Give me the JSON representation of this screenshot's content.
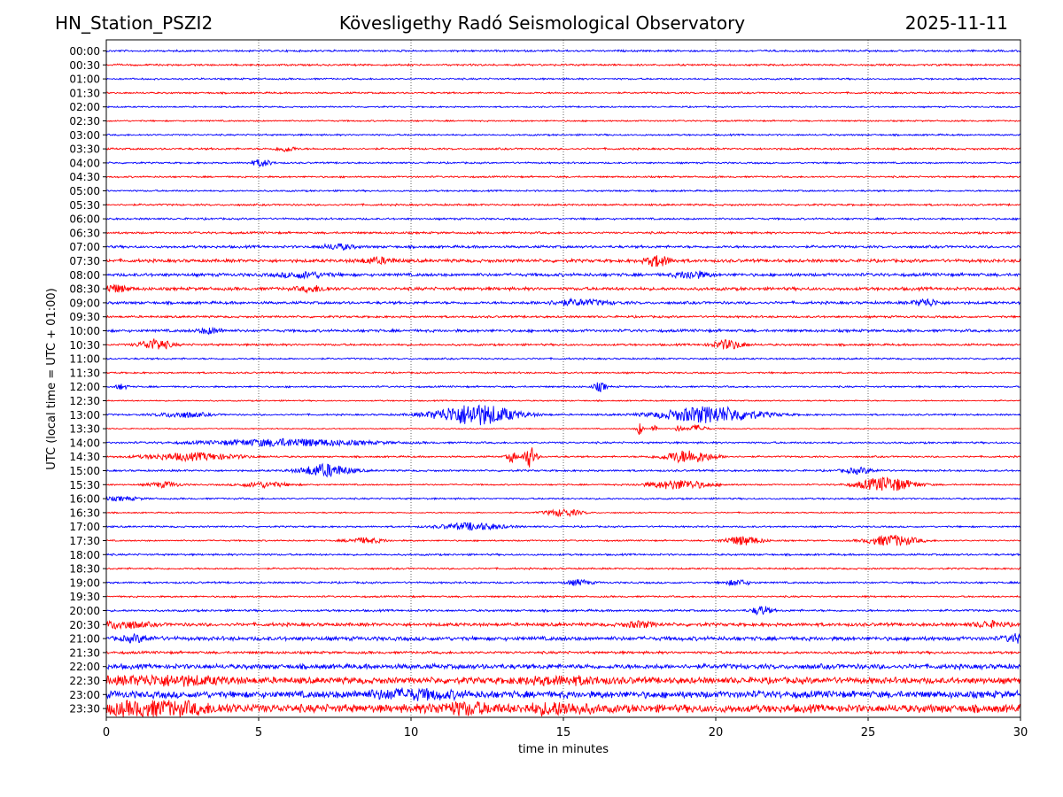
{
  "header": {
    "station": "HN_Station_PSZI2",
    "observatory": "Kövesligethy Radó Seismological Observatory",
    "date": "2025-11-11"
  },
  "chart_data": {
    "type": "line",
    "title": "Kövesligethy Radó Seismological Observatory",
    "xlabel": "time in minutes",
    "ylabel": "UTC (local time = UTC + 01:00)",
    "xlim": [
      0,
      30
    ],
    "xticks": [
      "0",
      "5",
      "10",
      "15",
      "20",
      "25",
      "30"
    ],
    "grid": "vertical dotted lines at 5, 10, 15, 20, 25",
    "trace_colors": [
      "#0000ff",
      "#ff0000"
    ],
    "rows": [
      {
        "label": "00:00",
        "noise": 0.9,
        "events": []
      },
      {
        "label": "00:30",
        "noise": 0.9,
        "events": []
      },
      {
        "label": "01:00",
        "noise": 0.8,
        "events": []
      },
      {
        "label": "01:30",
        "noise": 0.8,
        "events": []
      },
      {
        "label": "02:00",
        "noise": 0.7,
        "events": []
      },
      {
        "label": "02:30",
        "noise": 0.7,
        "events": []
      },
      {
        "label": "03:00",
        "noise": 0.8,
        "events": []
      },
      {
        "label": "03:30",
        "noise": 0.9,
        "events": [
          [
            5.9,
            3,
            0.3
          ]
        ]
      },
      {
        "label": "04:00",
        "noise": 0.8,
        "events": [
          [
            5.1,
            4,
            0.3
          ]
        ]
      },
      {
        "label": "04:30",
        "noise": 0.8,
        "events": []
      },
      {
        "label": "05:00",
        "noise": 0.8,
        "events": []
      },
      {
        "label": "05:30",
        "noise": 0.9,
        "events": []
      },
      {
        "label": "06:00",
        "noise": 0.9,
        "events": []
      },
      {
        "label": "06:30",
        "noise": 1.0,
        "events": []
      },
      {
        "label": "07:00",
        "noise": 1.2,
        "events": [
          [
            7.6,
            3,
            0.5
          ]
        ]
      },
      {
        "label": "07:30",
        "noise": 1.5,
        "events": [
          [
            18.1,
            6,
            0.4
          ],
          [
            8.9,
            3,
            0.6
          ]
        ]
      },
      {
        "label": "08:00",
        "noise": 1.5,
        "events": [
          [
            19.2,
            4,
            0.5
          ],
          [
            6.5,
            3,
            0.8
          ]
        ]
      },
      {
        "label": "08:30",
        "noise": 1.5,
        "events": [
          [
            0.3,
            4,
            0.4
          ],
          [
            6.8,
            3,
            0.5
          ]
        ]
      },
      {
        "label": "09:00",
        "noise": 1.3,
        "events": [
          [
            15.5,
            3,
            1.0
          ],
          [
            26.9,
            4,
            0.4
          ]
        ]
      },
      {
        "label": "09:30",
        "noise": 1.0,
        "events": []
      },
      {
        "label": "10:00",
        "noise": 1.3,
        "events": [
          [
            3.4,
            3,
            0.4
          ]
        ]
      },
      {
        "label": "10:30",
        "noise": 1.0,
        "events": [
          [
            1.6,
            6,
            0.5
          ],
          [
            20.4,
            5,
            0.5
          ]
        ]
      },
      {
        "label": "11:00",
        "noise": 0.8,
        "events": []
      },
      {
        "label": "11:30",
        "noise": 0.8,
        "events": []
      },
      {
        "label": "12:00",
        "noise": 0.8,
        "events": [
          [
            16.2,
            5,
            0.2
          ],
          [
            0.5,
            3,
            0.2
          ]
        ]
      },
      {
        "label": "12:30",
        "noise": 0.6,
        "events": []
      },
      {
        "label": "13:00",
        "noise": 0.8,
        "events": [
          [
            12.1,
            12,
            1.3
          ],
          [
            19.8,
            9,
            1.6
          ],
          [
            2.5,
            3,
            0.8
          ]
        ]
      },
      {
        "label": "13:30",
        "noise": 0.5,
        "events": [
          [
            17.5,
            7,
            0.1
          ],
          [
            18.0,
            5,
            0.1
          ],
          [
            18.8,
            5,
            0.1
          ],
          [
            19.4,
            4,
            0.3
          ]
        ]
      },
      {
        "label": "14:00",
        "noise": 0.9,
        "events": [
          [
            6.0,
            4,
            2.5
          ]
        ]
      },
      {
        "label": "14:30",
        "noise": 0.8,
        "events": [
          [
            13.9,
            12,
            0.2
          ],
          [
            13.3,
            6,
            0.15
          ],
          [
            19.1,
            7,
            0.8
          ],
          [
            2.8,
            4,
            1.5
          ]
        ]
      },
      {
        "label": "15:00",
        "noise": 0.9,
        "events": [
          [
            7.2,
            7,
            0.8
          ],
          [
            24.7,
            3,
            0.5
          ]
        ]
      },
      {
        "label": "15:30",
        "noise": 0.7,
        "events": [
          [
            25.6,
            8,
            0.9
          ],
          [
            18.8,
            5,
            1.0
          ],
          [
            5.2,
            3,
            0.8
          ],
          [
            1.9,
            3,
            0.5
          ]
        ]
      },
      {
        "label": "16:00",
        "noise": 0.8,
        "events": [
          [
            0.5,
            2,
            0.6
          ]
        ]
      },
      {
        "label": "16:30",
        "noise": 0.6,
        "events": [
          [
            15.0,
            4,
            0.6
          ]
        ]
      },
      {
        "label": "17:00",
        "noise": 0.8,
        "events": [
          [
            12.0,
            4,
            1.0
          ]
        ]
      },
      {
        "label": "17:30",
        "noise": 0.7,
        "events": [
          [
            20.9,
            5,
            0.6
          ],
          [
            25.8,
            6,
            0.8
          ],
          [
            8.5,
            3,
            0.6
          ]
        ]
      },
      {
        "label": "18:00",
        "noise": 0.9,
        "events": []
      },
      {
        "label": "18:30",
        "noise": 0.8,
        "events": []
      },
      {
        "label": "19:00",
        "noise": 0.9,
        "events": [
          [
            20.7,
            3,
            0.4
          ],
          [
            15.5,
            3,
            0.4
          ]
        ]
      },
      {
        "label": "19:30",
        "noise": 0.8,
        "events": []
      },
      {
        "label": "20:00",
        "noise": 1.0,
        "events": [
          [
            21.5,
            5,
            0.3
          ]
        ]
      },
      {
        "label": "20:30",
        "noise": 1.6,
        "events": [
          [
            0.5,
            4,
            0.8
          ],
          [
            17.5,
            3,
            0.5
          ],
          [
            29.0,
            3,
            0.5
          ]
        ]
      },
      {
        "label": "21:00",
        "noise": 1.9,
        "events": [
          [
            29.9,
            4,
            0.4
          ],
          [
            1.0,
            3,
            0.5
          ]
        ]
      },
      {
        "label": "21:30",
        "noise": 1.2,
        "events": []
      },
      {
        "label": "22:00",
        "noise": 2.3,
        "events": []
      },
      {
        "label": "22:30",
        "noise": 3.0,
        "events": [
          [
            2.0,
            4,
            2.0
          ],
          [
            15.0,
            3,
            1.5
          ]
        ]
      },
      {
        "label": "23:00",
        "noise": 3.3,
        "events": [
          [
            10.0,
            4,
            1.5
          ]
        ]
      },
      {
        "label": "23:30",
        "noise": 3.8,
        "events": [
          [
            1.6,
            6,
            2.0
          ],
          [
            11.7,
            5,
            1.0
          ],
          [
            14.8,
            5,
            1.0
          ]
        ]
      }
    ]
  }
}
